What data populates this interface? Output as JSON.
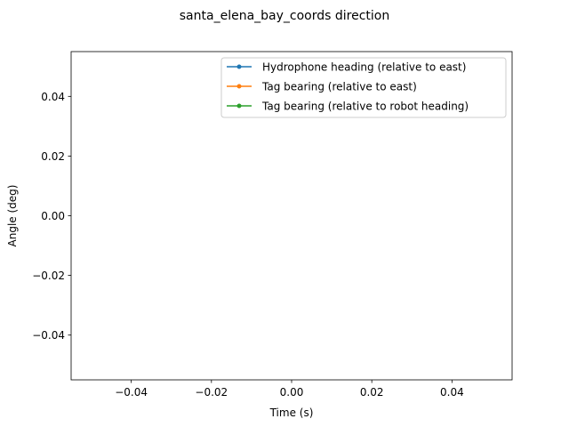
{
  "chart_data": {
    "type": "line",
    "title": "santa_elena_bay_coords direction",
    "xlabel": "Time (s)",
    "ylabel": "Angle (deg)",
    "xlim": [
      -0.055,
      0.055
    ],
    "ylim": [
      -0.055,
      0.055
    ],
    "xticks": [
      -0.04,
      -0.02,
      0.0,
      0.02,
      0.04
    ],
    "xtick_labels": [
      "−0.04",
      "−0.02",
      "0.00",
      "0.02",
      "0.04"
    ],
    "yticks": [
      -0.04,
      -0.02,
      0.0,
      0.02,
      0.04
    ],
    "ytick_labels": [
      "−0.04",
      "−0.02",
      "0.00",
      "0.02",
      "0.04"
    ],
    "grid": false,
    "legend_position": "top-right",
    "series": [
      {
        "name": "Hydrophone heading (relative to east)",
        "color": "#1f77b4",
        "marker": "point",
        "x": [],
        "y": []
      },
      {
        "name": "Tag bearing (relative to east)",
        "color": "#ff7f0e",
        "marker": "point",
        "x": [],
        "y": []
      },
      {
        "name": "Tag bearing (relative to robot heading)",
        "color": "#2ca02c",
        "marker": "point",
        "x": [],
        "y": []
      }
    ]
  }
}
